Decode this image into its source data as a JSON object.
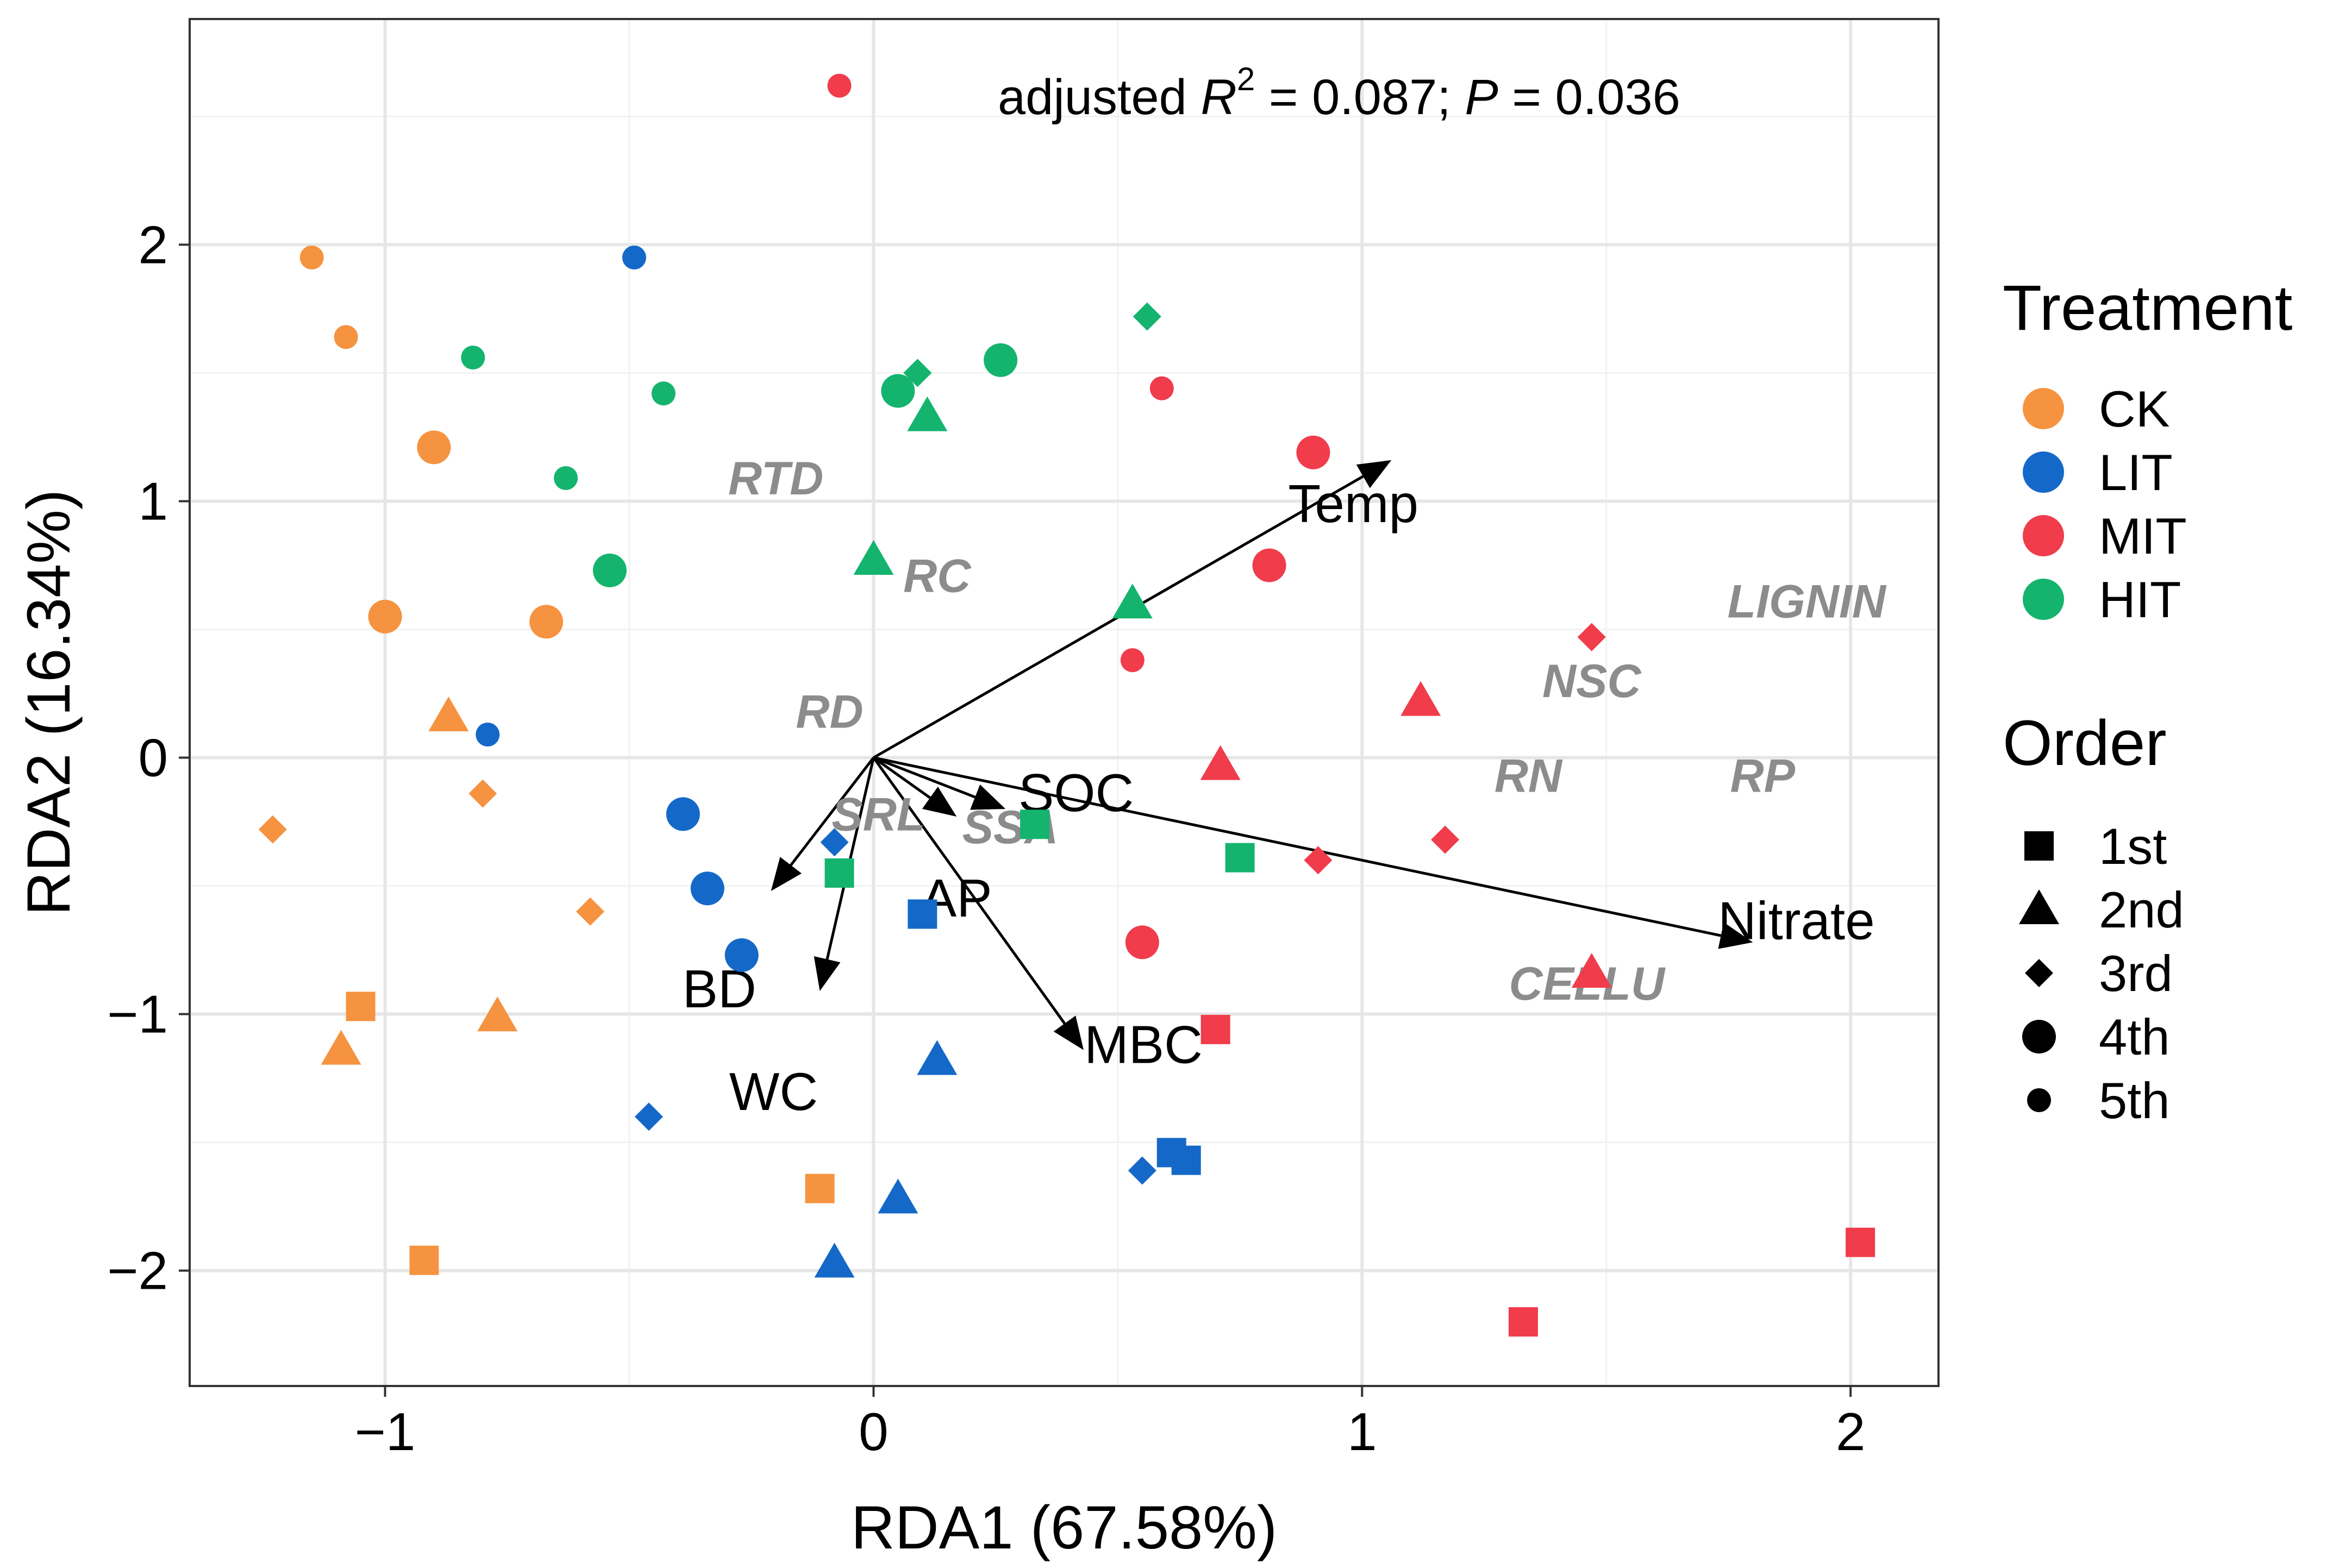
{
  "chart_data": {
    "type": "scatter",
    "title": "",
    "xlabel": "RDA1 (67.58%)",
    "ylabel": "RDA2 (16.34%)",
    "xlim": [
      -1.4,
      2.18
    ],
    "ylim": [
      -2.45,
      2.88
    ],
    "x_ticks": [
      -1,
      0,
      1,
      2
    ],
    "x_tick_labels": [
      "−1",
      "0",
      "1",
      "2"
    ],
    "y_ticks": [
      -2,
      -1,
      0,
      1,
      2
    ],
    "y_tick_labels": [
      "−2",
      "−1",
      "0",
      "1",
      "2"
    ],
    "grid": true,
    "annotation": {
      "prefix": "adjusted ",
      "r": "R",
      "sup": "2",
      "mid": " = 0.087; ",
      "p": "P",
      "suffix": " = 0.036"
    },
    "legend": {
      "position": "right",
      "treatment_title": "Treatment",
      "order_title": "Order",
      "treatments": [
        {
          "key": "CK",
          "label": "CK",
          "color": "#F59340"
        },
        {
          "key": "LIT",
          "label": "LIT",
          "color": "#1469C8"
        },
        {
          "key": "MIT",
          "label": "MIT",
          "color": "#F03C4B"
        },
        {
          "key": "HIT",
          "label": "HIT",
          "color": "#14B46E"
        }
      ],
      "orders": [
        {
          "key": "1st",
          "label": "1st",
          "shape": "square"
        },
        {
          "key": "2nd",
          "label": "2nd",
          "shape": "triangle"
        },
        {
          "key": "3rd",
          "label": "3rd",
          "shape": "diamond"
        },
        {
          "key": "4th",
          "label": "4th",
          "shape": "circle-large"
        },
        {
          "key": "5th",
          "label": "5th",
          "shape": "circle-small"
        }
      ]
    },
    "env_vectors": [
      {
        "label": "Temp",
        "x": 1.06,
        "y": 1.16
      },
      {
        "label": "Nitrate",
        "x": 1.8,
        "y": -0.72
      },
      {
        "label": "SOC",
        "x": 0.27,
        "y": -0.2
      },
      {
        "label": "AP",
        "x": 0.17,
        "y": -0.23
      },
      {
        "label": "BD",
        "x": -0.21,
        "y": -0.52
      },
      {
        "label": "WC",
        "x": -0.11,
        "y": -0.91
      },
      {
        "label": "MBC",
        "x": 0.43,
        "y": -1.14
      }
    ],
    "traits": [
      {
        "label": "RTD",
        "x": -0.2,
        "y": 1.09
      },
      {
        "label": "RC",
        "x": 0.13,
        "y": 0.71
      },
      {
        "label": "RD",
        "x": -0.09,
        "y": 0.18
      },
      {
        "label": "SRL",
        "x": 0.01,
        "y": -0.22
      },
      {
        "label": "SSA",
        "x": 0.28,
        "y": -0.27
      },
      {
        "label": "LIGNIN",
        "x": 1.91,
        "y": 0.61
      },
      {
        "label": "NSC",
        "x": 1.47,
        "y": 0.3
      },
      {
        "label": "RN",
        "x": 1.34,
        "y": -0.07
      },
      {
        "label": "RP",
        "x": 1.82,
        "y": -0.07
      },
      {
        "label": "CELLU",
        "x": 1.46,
        "y": -0.88
      }
    ],
    "points": [
      {
        "treatment": "CK",
        "order": "5th",
        "x": -1.15,
        "y": 1.95
      },
      {
        "treatment": "CK",
        "order": "5th",
        "x": -1.08,
        "y": 1.64
      },
      {
        "treatment": "CK",
        "order": "4th",
        "x": -0.9,
        "y": 1.21
      },
      {
        "treatment": "CK",
        "order": "4th",
        "x": -1.0,
        "y": 0.55
      },
      {
        "treatment": "CK",
        "order": "4th",
        "x": -0.67,
        "y": 0.53
      },
      {
        "treatment": "CK",
        "order": "2nd",
        "x": -0.87,
        "y": 0.16
      },
      {
        "treatment": "CK",
        "order": "3rd",
        "x": -1.23,
        "y": -0.28
      },
      {
        "treatment": "CK",
        "order": "3rd",
        "x": -0.8,
        "y": -0.14
      },
      {
        "treatment": "CK",
        "order": "3rd",
        "x": -0.58,
        "y": -0.6
      },
      {
        "treatment": "CK",
        "order": "1st",
        "x": -1.05,
        "y": -0.97
      },
      {
        "treatment": "CK",
        "order": "2nd",
        "x": -1.09,
        "y": -1.14
      },
      {
        "treatment": "CK",
        "order": "2nd",
        "x": -0.77,
        "y": -1.01
      },
      {
        "treatment": "CK",
        "order": "1st",
        "x": -0.11,
        "y": -1.68
      },
      {
        "treatment": "CK",
        "order": "1st",
        "x": -0.92,
        "y": -1.96
      },
      {
        "treatment": "LIT",
        "order": "5th",
        "x": -0.49,
        "y": 1.95
      },
      {
        "treatment": "LIT",
        "order": "5th",
        "x": -0.79,
        "y": 0.09
      },
      {
        "treatment": "LIT",
        "order": "4th",
        "x": -0.39,
        "y": -0.22
      },
      {
        "treatment": "LIT",
        "order": "4th",
        "x": -0.34,
        "y": -0.51
      },
      {
        "treatment": "LIT",
        "order": "4th",
        "x": -0.27,
        "y": -0.77
      },
      {
        "treatment": "LIT",
        "order": "3rd",
        "x": -0.08,
        "y": -0.33
      },
      {
        "treatment": "LIT",
        "order": "1st",
        "x": 0.1,
        "y": -0.61
      },
      {
        "treatment": "LIT",
        "order": "3rd",
        "x": -0.46,
        "y": -1.4
      },
      {
        "treatment": "LIT",
        "order": "2nd",
        "x": 0.13,
        "y": -1.18
      },
      {
        "treatment": "LIT",
        "order": "2nd",
        "x": 0.05,
        "y": -1.72
      },
      {
        "treatment": "LIT",
        "order": "2nd",
        "x": -0.08,
        "y": -1.97
      },
      {
        "treatment": "LIT",
        "order": "1st",
        "x": 0.61,
        "y": -1.54
      },
      {
        "treatment": "LIT",
        "order": "1st",
        "x": 0.64,
        "y": -1.57
      },
      {
        "treatment": "LIT",
        "order": "3rd",
        "x": 0.55,
        "y": -1.61
      },
      {
        "treatment": "MIT",
        "order": "5th",
        "x": -0.07,
        "y": 2.62
      },
      {
        "treatment": "MIT",
        "order": "5th",
        "x": 0.59,
        "y": 1.44
      },
      {
        "treatment": "MIT",
        "order": "4th",
        "x": 0.9,
        "y": 1.19
      },
      {
        "treatment": "MIT",
        "order": "4th",
        "x": 0.81,
        "y": 0.75
      },
      {
        "treatment": "MIT",
        "order": "5th",
        "x": 0.53,
        "y": 0.38
      },
      {
        "treatment": "MIT",
        "order": "3rd",
        "x": 1.47,
        "y": 0.47
      },
      {
        "treatment": "MIT",
        "order": "2nd",
        "x": 1.12,
        "y": 0.22
      },
      {
        "treatment": "MIT",
        "order": "2nd",
        "x": 0.71,
        "y": -0.03
      },
      {
        "treatment": "MIT",
        "order": "3rd",
        "x": 1.17,
        "y": -0.32
      },
      {
        "treatment": "MIT",
        "order": "3rd",
        "x": 0.91,
        "y": -0.4
      },
      {
        "treatment": "MIT",
        "order": "4th",
        "x": 0.55,
        "y": -0.72
      },
      {
        "treatment": "MIT",
        "order": "2nd",
        "x": 1.47,
        "y": -0.84
      },
      {
        "treatment": "MIT",
        "order": "1st",
        "x": 0.7,
        "y": -1.06
      },
      {
        "treatment": "MIT",
        "order": "1st",
        "x": 2.02,
        "y": -1.89
      },
      {
        "treatment": "MIT",
        "order": "1st",
        "x": 1.33,
        "y": -2.2
      },
      {
        "treatment": "HIT",
        "order": "3rd",
        "x": 0.56,
        "y": 1.72
      },
      {
        "treatment": "HIT",
        "order": "5th",
        "x": -0.82,
        "y": 1.56
      },
      {
        "treatment": "HIT",
        "order": "5th",
        "x": -0.43,
        "y": 1.42
      },
      {
        "treatment": "HIT",
        "order": "5th",
        "x": -0.63,
        "y": 1.09
      },
      {
        "treatment": "HIT",
        "order": "3rd",
        "x": 0.09,
        "y": 1.5
      },
      {
        "treatment": "HIT",
        "order": "4th",
        "x": 0.26,
        "y": 1.55
      },
      {
        "treatment": "HIT",
        "order": "4th",
        "x": 0.05,
        "y": 1.43
      },
      {
        "treatment": "HIT",
        "order": "2nd",
        "x": 0.11,
        "y": 1.33
      },
      {
        "treatment": "HIT",
        "order": "4th",
        "x": -0.54,
        "y": 0.73
      },
      {
        "treatment": "HIT",
        "order": "2nd",
        "x": 0.0,
        "y": 0.77
      },
      {
        "treatment": "HIT",
        "order": "2nd",
        "x": 0.53,
        "y": 0.6
      },
      {
        "treatment": "HIT",
        "order": "1st",
        "x": -0.07,
        "y": -0.45
      },
      {
        "treatment": "HIT",
        "order": "1st",
        "x": 0.33,
        "y": -0.26
      },
      {
        "treatment": "HIT",
        "order": "1st",
        "x": 0.75,
        "y": -0.39
      }
    ]
  }
}
